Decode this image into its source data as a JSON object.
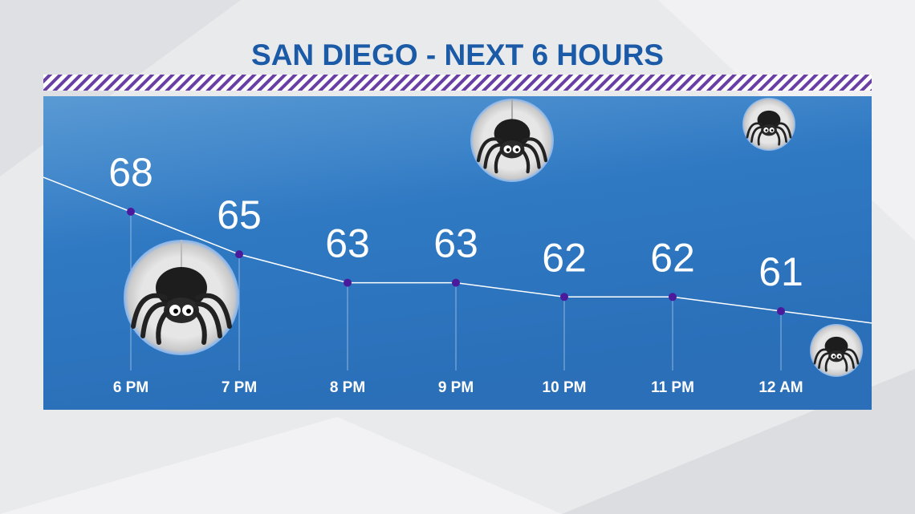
{
  "chart_data": {
    "type": "line",
    "title": "SAN DIEGO - NEXT 6 HOURS",
    "categories": [
      "6 PM",
      "7 PM",
      "8 PM",
      "9 PM",
      "10 PM",
      "11 PM",
      "12 AM"
    ],
    "values": [
      68,
      65,
      63,
      63,
      62,
      62,
      61
    ],
    "color": "#ffffff",
    "marker_color": "#4b1a9c"
  }
}
